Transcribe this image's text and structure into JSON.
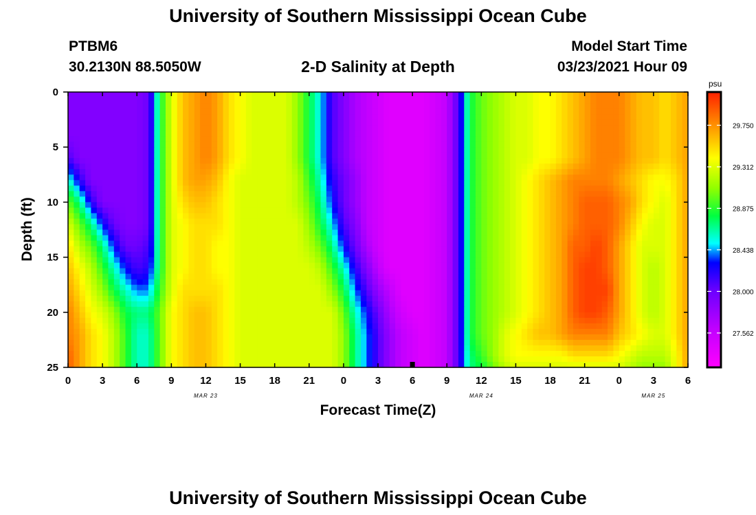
{
  "page": {
    "title_top": "University of Southern Mississippi Ocean Cube",
    "title_bottom": "University of Southern Mississippi Ocean Cube",
    "station_id": "PTBM6",
    "station_coords": "30.2130N 88.5050W",
    "plot_title": "2-D Salinity at Depth",
    "model_start_label": "Model Start Time",
    "model_start_value": "03/23/2021 Hour 09"
  },
  "chart_data": {
    "type": "heatmap",
    "title": "2-D Salinity at Depth",
    "xlabel": "Forecast Time(Z)",
    "ylabel": "Depth (ft)",
    "x_ticks": [
      "0",
      "3",
      "6",
      "9",
      "12",
      "15",
      "18",
      "21",
      "0",
      "3",
      "6",
      "9",
      "12",
      "15",
      "18",
      "21",
      "0",
      "3",
      "6"
    ],
    "x_range_hours": [
      0,
      54
    ],
    "date_labels": [
      {
        "label": "MAR 23",
        "hour": 12
      },
      {
        "label": "MAR 24",
        "hour": 36
      },
      {
        "label": "MAR 25",
        "hour": 51
      }
    ],
    "y_ticks": [
      0,
      5,
      10,
      15,
      20,
      25
    ],
    "ylim": [
      0,
      25
    ],
    "colorbar": {
      "unit": "psu",
      "range": [
        27.2,
        30.1
      ],
      "tick_values": [
        29.75,
        29.312,
        28.875,
        28.438,
        28.0,
        27.562
      ],
      "tick_labels": [
        "29.750",
        "29.312",
        "28.875",
        "28.438",
        "28.000",
        "27.562"
      ]
    },
    "marker": {
      "hour": 30,
      "depth_ft": 25
    },
    "salinity_field": {
      "depth_ft": [
        0,
        2,
        4,
        6,
        8,
        10,
        12,
        14,
        16,
        18,
        20,
        22,
        24,
        25
      ],
      "time_hours": [
        0,
        1,
        2,
        3,
        4,
        5,
        6,
        7,
        8,
        9,
        10,
        11,
        12,
        13,
        14,
        15,
        16,
        17,
        18,
        19,
        20,
        21,
        22,
        23,
        24,
        25,
        26,
        27,
        28,
        29,
        30,
        31,
        32,
        33,
        34,
        35,
        36,
        37,
        38,
        39,
        40,
        41,
        42,
        43,
        44,
        45,
        46,
        47,
        48,
        49,
        50,
        51,
        52,
        53,
        54
      ],
      "values_psu": [
        [
          27.9,
          27.9,
          27.9,
          27.9,
          27.9,
          27.9,
          27.9,
          28.0,
          28.8,
          29.3,
          29.6,
          29.7,
          29.8,
          29.7,
          29.5,
          29.4,
          29.3,
          29.3,
          29.3,
          29.3,
          29.1,
          28.8,
          28.5,
          28.1,
          27.9,
          27.7,
          27.6,
          27.5,
          27.4,
          27.4,
          27.4,
          27.4,
          27.5,
          27.6,
          28.1,
          28.8,
          29.0,
          29.1,
          29.2,
          29.3,
          29.3,
          29.4,
          29.4,
          29.5,
          29.6,
          29.7,
          29.8,
          29.8,
          29.8,
          29.7,
          29.6,
          29.6,
          29.5,
          29.6,
          29.7
        ],
        [
          27.9,
          27.9,
          27.9,
          27.9,
          27.9,
          27.9,
          27.9,
          28.0,
          28.8,
          29.3,
          29.6,
          29.7,
          29.8,
          29.7,
          29.5,
          29.4,
          29.3,
          29.3,
          29.3,
          29.3,
          29.1,
          28.8,
          28.5,
          28.1,
          27.9,
          27.7,
          27.6,
          27.5,
          27.4,
          27.4,
          27.4,
          27.4,
          27.5,
          27.6,
          28.1,
          28.8,
          29.0,
          29.1,
          29.2,
          29.3,
          29.3,
          29.4,
          29.4,
          29.5,
          29.6,
          29.7,
          29.8,
          29.8,
          29.8,
          29.7,
          29.6,
          29.6,
          29.5,
          29.6,
          29.7
        ],
        [
          27.9,
          27.9,
          27.9,
          27.9,
          27.9,
          27.9,
          27.9,
          28.0,
          28.8,
          29.3,
          29.6,
          29.7,
          29.8,
          29.7,
          29.5,
          29.4,
          29.3,
          29.3,
          29.3,
          29.3,
          29.1,
          28.8,
          28.5,
          28.1,
          27.9,
          27.7,
          27.6,
          27.5,
          27.4,
          27.4,
          27.4,
          27.4,
          27.5,
          27.6,
          28.1,
          28.8,
          29.0,
          29.1,
          29.2,
          29.3,
          29.3,
          29.4,
          29.4,
          29.5,
          29.6,
          29.7,
          29.8,
          29.8,
          29.8,
          29.7,
          29.6,
          29.6,
          29.5,
          29.6,
          29.7
        ],
        [
          28.1,
          27.9,
          27.9,
          27.9,
          27.9,
          27.9,
          27.9,
          28.0,
          28.8,
          29.3,
          29.6,
          29.7,
          29.8,
          29.7,
          29.5,
          29.4,
          29.3,
          29.3,
          29.3,
          29.3,
          29.1,
          28.8,
          28.5,
          28.1,
          27.9,
          27.7,
          27.6,
          27.5,
          27.4,
          27.4,
          27.4,
          27.4,
          27.5,
          27.6,
          28.1,
          28.8,
          29.0,
          29.1,
          29.2,
          29.3,
          29.3,
          29.4,
          29.4,
          29.5,
          29.6,
          29.7,
          29.8,
          29.8,
          29.8,
          29.7,
          29.6,
          29.6,
          29.5,
          29.6,
          29.7
        ],
        [
          28.6,
          28.2,
          27.9,
          27.9,
          27.9,
          27.9,
          27.9,
          28.0,
          28.8,
          29.3,
          29.6,
          29.7,
          29.7,
          29.6,
          29.4,
          29.3,
          29.3,
          29.3,
          29.3,
          29.3,
          29.2,
          28.9,
          28.6,
          28.2,
          28.0,
          27.8,
          27.6,
          27.5,
          27.4,
          27.4,
          27.4,
          27.4,
          27.5,
          27.6,
          28.1,
          28.8,
          29.0,
          29.1,
          29.2,
          29.3,
          29.4,
          29.5,
          29.6,
          29.7,
          29.8,
          29.8,
          29.8,
          29.8,
          29.7,
          29.6,
          29.5,
          29.4,
          29.4,
          29.5,
          29.7
        ],
        [
          29.0,
          28.7,
          28.2,
          27.9,
          27.9,
          27.9,
          27.9,
          28.0,
          28.8,
          29.3,
          29.5,
          29.6,
          29.6,
          29.5,
          29.4,
          29.3,
          29.3,
          29.3,
          29.3,
          29.3,
          29.2,
          29.0,
          28.7,
          28.3,
          28.0,
          27.8,
          27.6,
          27.5,
          27.4,
          27.4,
          27.4,
          27.4,
          27.5,
          27.6,
          28.1,
          28.8,
          29.0,
          29.1,
          29.2,
          29.3,
          29.4,
          29.5,
          29.6,
          29.7,
          29.8,
          29.9,
          29.9,
          29.9,
          29.8,
          29.7,
          29.5,
          29.4,
          29.3,
          29.5,
          29.7
        ],
        [
          29.3,
          29.0,
          28.7,
          28.3,
          28.0,
          27.9,
          27.9,
          28.0,
          28.8,
          29.3,
          29.4,
          29.5,
          29.5,
          29.5,
          29.4,
          29.3,
          29.3,
          29.3,
          29.3,
          29.3,
          29.3,
          29.1,
          28.8,
          28.5,
          28.1,
          27.9,
          27.6,
          27.5,
          27.4,
          27.4,
          27.4,
          27.4,
          27.5,
          27.6,
          28.1,
          28.8,
          29.0,
          29.1,
          29.2,
          29.3,
          29.4,
          29.5,
          29.6,
          29.7,
          29.8,
          29.9,
          29.9,
          29.9,
          29.8,
          29.6,
          29.4,
          29.3,
          29.3,
          29.5,
          29.7
        ],
        [
          29.5,
          29.2,
          29.0,
          28.7,
          28.3,
          28.0,
          28.0,
          28.1,
          28.8,
          29.3,
          29.4,
          29.5,
          29.5,
          29.4,
          29.4,
          29.3,
          29.3,
          29.3,
          29.3,
          29.3,
          29.3,
          29.2,
          29.0,
          28.7,
          28.3,
          28.0,
          27.7,
          27.5,
          27.4,
          27.4,
          27.4,
          27.4,
          27.5,
          27.6,
          28.1,
          28.8,
          29.0,
          29.1,
          29.2,
          29.3,
          29.4,
          29.5,
          29.6,
          29.7,
          29.9,
          29.9,
          30.0,
          29.9,
          29.7,
          29.5,
          29.3,
          29.3,
          29.3,
          29.5,
          29.7
        ],
        [
          29.6,
          29.4,
          29.2,
          28.9,
          28.6,
          28.3,
          28.1,
          28.2,
          28.8,
          29.3,
          29.4,
          29.5,
          29.5,
          29.4,
          29.4,
          29.3,
          29.3,
          29.3,
          29.3,
          29.3,
          29.3,
          29.3,
          29.2,
          28.9,
          28.6,
          28.2,
          27.9,
          27.6,
          27.4,
          27.4,
          27.4,
          27.4,
          27.5,
          27.6,
          28.1,
          28.8,
          29.0,
          29.1,
          29.2,
          29.3,
          29.4,
          29.5,
          29.6,
          29.7,
          29.9,
          30.0,
          30.0,
          29.9,
          29.7,
          29.5,
          29.3,
          29.2,
          29.3,
          29.5,
          29.7
        ],
        [
          29.7,
          29.5,
          29.3,
          29.1,
          28.8,
          28.6,
          28.4,
          28.4,
          28.9,
          29.3,
          29.5,
          29.5,
          29.5,
          29.5,
          29.4,
          29.3,
          29.3,
          29.3,
          29.3,
          29.3,
          29.3,
          29.3,
          29.3,
          29.1,
          28.8,
          28.4,
          28.1,
          27.8,
          27.6,
          27.4,
          27.4,
          27.4,
          27.5,
          27.6,
          28.1,
          28.8,
          29.0,
          29.1,
          29.2,
          29.3,
          29.4,
          29.5,
          29.6,
          29.7,
          29.9,
          30.0,
          30.0,
          30.0,
          29.7,
          29.5,
          29.3,
          29.2,
          29.3,
          29.5,
          29.7
        ],
        [
          29.8,
          29.6,
          29.4,
          29.3,
          29.1,
          28.8,
          28.7,
          28.7,
          29.0,
          29.4,
          29.5,
          29.6,
          29.6,
          29.5,
          29.4,
          29.3,
          29.3,
          29.3,
          29.3,
          29.3,
          29.3,
          29.3,
          29.3,
          29.3,
          29.0,
          28.6,
          28.3,
          28.0,
          27.7,
          27.5,
          27.4,
          27.4,
          27.5,
          27.6,
          28.1,
          28.8,
          29.0,
          29.1,
          29.2,
          29.3,
          29.4,
          29.5,
          29.6,
          29.7,
          29.9,
          30.0,
          30.0,
          29.9,
          29.7,
          29.5,
          29.3,
          29.2,
          29.3,
          29.5,
          29.7
        ],
        [
          29.8,
          29.7,
          29.5,
          29.4,
          29.2,
          28.9,
          28.6,
          28.6,
          29.0,
          29.4,
          29.5,
          29.6,
          29.6,
          29.5,
          29.4,
          29.3,
          29.3,
          29.3,
          29.3,
          29.3,
          29.3,
          29.3,
          29.3,
          29.3,
          29.1,
          28.7,
          28.4,
          28.1,
          27.8,
          27.6,
          27.5,
          27.4,
          27.5,
          27.6,
          28.1,
          28.8,
          29.0,
          29.1,
          29.3,
          29.4,
          29.5,
          29.6,
          29.6,
          29.7,
          29.8,
          29.8,
          29.8,
          29.8,
          29.6,
          29.5,
          29.4,
          29.3,
          29.3,
          29.5,
          29.7
        ],
        [
          29.9,
          29.7,
          29.5,
          29.4,
          29.2,
          28.9,
          28.6,
          28.6,
          29.0,
          29.4,
          29.5,
          29.6,
          29.6,
          29.5,
          29.4,
          29.3,
          29.3,
          29.3,
          29.3,
          29.3,
          29.3,
          29.3,
          29.3,
          29.3,
          29.1,
          28.7,
          28.4,
          28.1,
          27.8,
          27.6,
          27.5,
          27.4,
          27.5,
          27.6,
          28.1,
          28.7,
          28.9,
          29.1,
          29.3,
          29.4,
          29.4,
          29.4,
          29.4,
          29.4,
          29.5,
          29.5,
          29.5,
          29.5,
          29.4,
          29.3,
          29.2,
          29.2,
          29.2,
          29.4,
          29.7
        ],
        [
          29.9,
          29.7,
          29.5,
          29.4,
          29.2,
          28.9,
          28.6,
          28.6,
          29.0,
          29.4,
          29.5,
          29.6,
          29.6,
          29.5,
          29.4,
          29.3,
          29.3,
          29.3,
          29.3,
          29.3,
          29.3,
          29.3,
          29.3,
          29.3,
          29.1,
          28.7,
          28.4,
          28.1,
          27.8,
          27.6,
          27.5,
          27.4,
          27.5,
          27.6,
          28.1,
          28.7,
          28.8,
          29.0,
          29.2,
          29.3,
          29.3,
          29.3,
          29.3,
          29.3,
          29.3,
          29.3,
          29.3,
          29.3,
          29.3,
          29.2,
          29.1,
          29.1,
          29.1,
          29.4,
          29.7
        ]
      ]
    }
  }
}
